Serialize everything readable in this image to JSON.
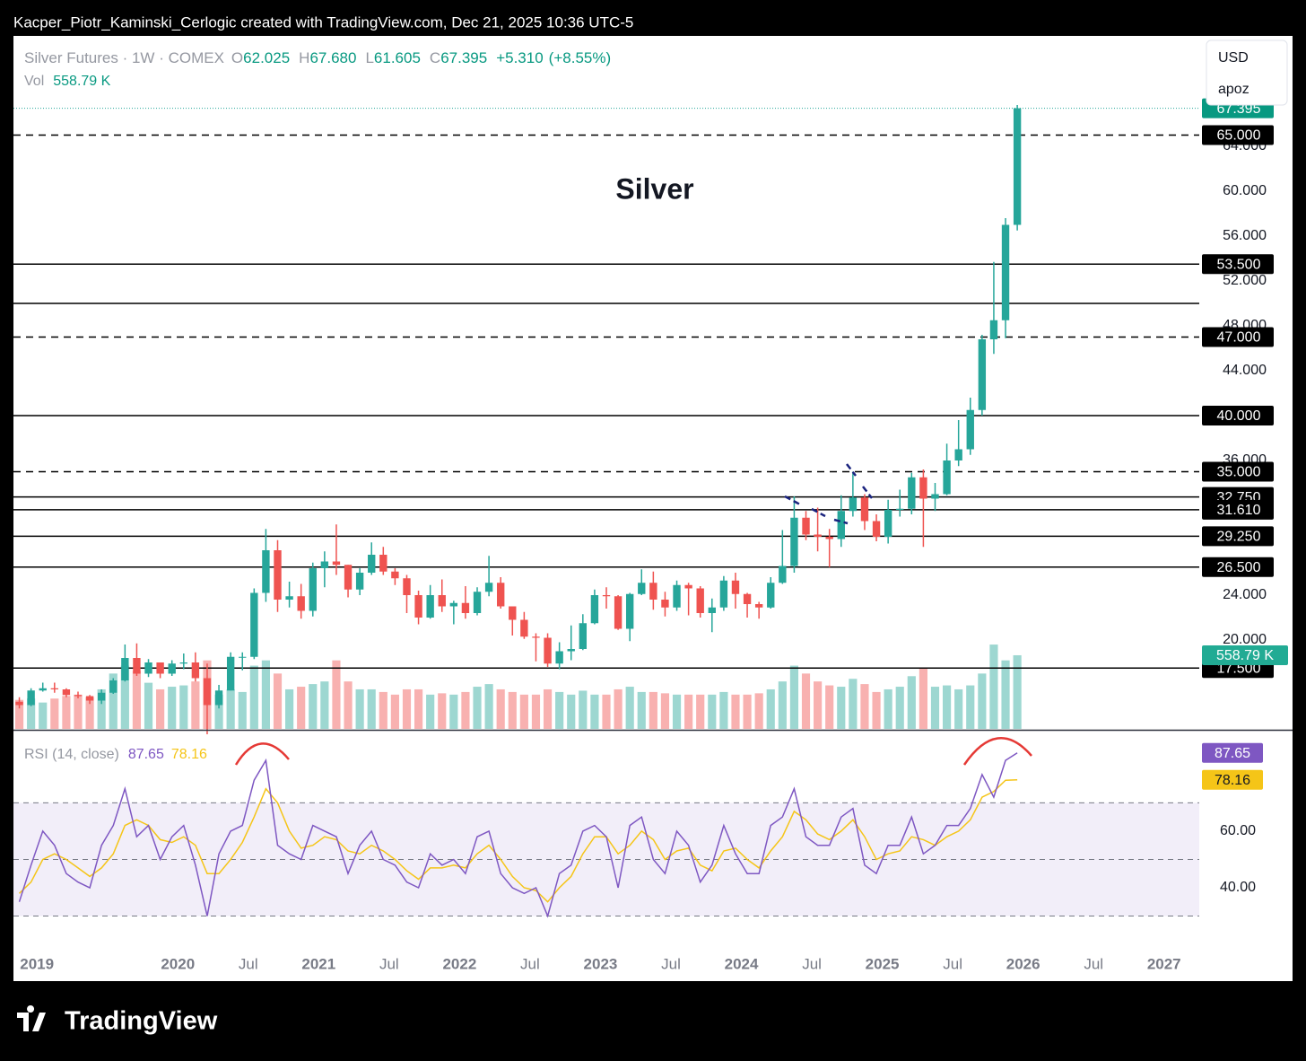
{
  "header": "Kacper_Piotr_Kaminski_Cerlogic created with TradingView.com, Dec 21, 2025 10:36 UTC-5",
  "footer_logo": "TradingView",
  "chart_data": {
    "type": "candlestick",
    "annotation": "Silver",
    "currency": "USD",
    "scale_mode": "apoz",
    "legend": {
      "symbol": "Silver Futures · 1W · COMEX",
      "fields": [
        {
          "letter": "O",
          "value": 62.025
        },
        {
          "letter": "H",
          "value": {
            "value": 67.68,
            "label": "67.680"
          }
        },
        {
          "letter": "L",
          "value": 61.605
        },
        {
          "letter": "C",
          "value": 67.395
        }
      ],
      "change": {
        "value": 5.31,
        "label": "+5.310"
      },
      "change_pct": {
        "value": 8.55,
        "label": "(+8.55%)"
      },
      "vol_label": "Vol",
      "vol": {
        "value": 558.79,
        "label": "558.79 K"
      }
    },
    "up_color": "#26a69a",
    "down_color": "#ef5350",
    "xlim": [
      "2018-11",
      "2027-04"
    ],
    "xticks": [
      {
        "value": "2019-01",
        "label": "2019"
      },
      {
        "value": "2020-01",
        "label": "2020"
      },
      {
        "value": "2020-07",
        "label": "Jul"
      },
      {
        "value": "2021-01",
        "label": "2021"
      },
      {
        "value": "2021-07",
        "label": "Jul"
      },
      {
        "value": "2022-01",
        "label": "2022"
      },
      {
        "value": "2022-07",
        "label": "Jul"
      },
      {
        "value": "2023-01",
        "label": "2023"
      },
      {
        "value": "2023-07",
        "label": "Jul"
      },
      {
        "value": "2024-01",
        "label": "2024"
      },
      {
        "value": "2024-07",
        "label": "Jul"
      },
      {
        "value": "2025-01",
        "label": "2025"
      },
      {
        "value": "2025-07",
        "label": "Jul"
      },
      {
        "value": "2026-01",
        "label": "2026"
      },
      {
        "value": "2026-07",
        "label": "Jul"
      },
      {
        "value": "2027-01",
        "label": "2027"
      }
    ],
    "ylim": [
      12.08,
      73.84
    ],
    "yticks": [
      {
        "value": 64,
        "label": "64.000"
      },
      {
        "value": 60,
        "label": "60.000"
      },
      {
        "value": 56,
        "label": "56.000"
      },
      {
        "value": 52,
        "label": "52.000"
      },
      {
        "value": 48,
        "label": "48.000"
      },
      {
        "value": 44,
        "label": "44.000"
      },
      {
        "value": 36,
        "label": "36.000"
      },
      {
        "value": 24,
        "label": "24.000"
      },
      {
        "value": 20,
        "label": "20.000"
      }
    ],
    "vlim": [
      0,
      5260
    ],
    "levels": [
      {
        "value": 65,
        "label": "65.000",
        "style": "dashed"
      },
      {
        "value": 53.5,
        "label": "53.500",
        "style": "solid"
      },
      {
        "value": 50,
        "label": null,
        "style": "solid"
      },
      {
        "value": 47,
        "label": "47.000",
        "style": "dashed"
      },
      {
        "value": 40,
        "label": "40.000",
        "style": "solid"
      },
      {
        "value": 35,
        "label": "35.000",
        "style": "dashed"
      },
      {
        "value": 32.75,
        "label": "32.750",
        "style": "solid"
      },
      {
        "value": 31.61,
        "label": "31.610",
        "style": "solid"
      },
      {
        "value": 29.25,
        "label": "29.250",
        "style": "solid"
      },
      {
        "value": 26.5,
        "label": "26.500",
        "style": "solid"
      },
      {
        "value": 17.5,
        "label": "17.500",
        "style": "solid"
      }
    ],
    "x": [
      "2018-11",
      "2018-12",
      "2019-01",
      "2019-02",
      "2019-03",
      "2019-04",
      "2019-05",
      "2019-06",
      "2019-07",
      "2019-08",
      "2019-09",
      "2019-10",
      "2019-11",
      "2019-12",
      "2020-01",
      "2020-02",
      "2020-03",
      "2020-04",
      "2020-05",
      "2020-06",
      "2020-07",
      "2020-08",
      "2020-09",
      "2020-10",
      "2020-11",
      "2020-12",
      "2021-01",
      "2021-02",
      "2021-03",
      "2021-04",
      "2021-05",
      "2021-06",
      "2021-07",
      "2021-08",
      "2021-09",
      "2021-10",
      "2021-11",
      "2021-12",
      "2022-01",
      "2022-02",
      "2022-03",
      "2022-04",
      "2022-05",
      "2022-06",
      "2022-07",
      "2022-08",
      "2022-09",
      "2022-10",
      "2022-11",
      "2022-12",
      "2023-01",
      "2023-02",
      "2023-03",
      "2023-04",
      "2023-05",
      "2023-06",
      "2023-07",
      "2023-08",
      "2023-09",
      "2023-10",
      "2023-11",
      "2023-12",
      "2024-01",
      "2024-02",
      "2024-03",
      "2024-04",
      "2024-05",
      "2024-06",
      "2024-07",
      "2024-08",
      "2024-09",
      "2024-10",
      "2024-11",
      "2024-12",
      "2025-01",
      "2025-02",
      "2025-03",
      "2025-04",
      "2025-05",
      "2025-06",
      "2025-07",
      "2025-08",
      "2025-09",
      "2025-10",
      "2025-11",
      "2025-12"
    ],
    "open": [
      14.5,
      14.2,
      15.5,
      15.7,
      15.6,
      15.1,
      15.0,
      14.6,
      15.3,
      16.4,
      18.4,
      17.0,
      18.0,
      17.0,
      17.9,
      18.0,
      16.6,
      14.2,
      15.5,
      18.5,
      18.5,
      24.2,
      28.0,
      23.6,
      23.9,
      22.6,
      26.4,
      27.0,
      26.7,
      24.5,
      26.0,
      27.6,
      26.1,
      25.5,
      24.0,
      22.0,
      24.0,
      23.0,
      23.3,
      22.4,
      24.3,
      25.1,
      23.0,
      21.8,
      20.3,
      20.2,
      17.9,
      19.0,
      19.2,
      21.5,
      24.0,
      23.9,
      21.0,
      24.1,
      25.1,
      23.6,
      22.9,
      24.9,
      24.6,
      22.4,
      22.9,
      25.3,
      24.1,
      23.2,
      22.9,
      25.1,
      26.6,
      30.9,
      29.4,
      29.2,
      29.0,
      31.5,
      32.7,
      30.6,
      29.2,
      31.6,
      31.7,
      34.5,
      32.6,
      33.0,
      36.0,
      37.0,
      40.5,
      46.8,
      48.5,
      57.0
    ],
    "high": [
      14.9,
      15.7,
      16.2,
      16.2,
      15.7,
      15.4,
      15.1,
      15.6,
      16.6,
      19.6,
      19.7,
      18.3,
      18.0,
      18.2,
      18.8,
      18.9,
      17.9,
      16.0,
      18.9,
      18.9,
      24.6,
      29.9,
      28.9,
      25.2,
      25.0,
      26.9,
      27.9,
      30.3,
      26.7,
      26.4,
      28.7,
      28.3,
      26.4,
      25.8,
      24.4,
      24.9,
      25.4,
      23.5,
      24.8,
      24.7,
      27.5,
      25.6,
      23.0,
      22.5,
      20.6,
      20.6,
      19.8,
      21.3,
      22.3,
      24.5,
      24.7,
      24.0,
      24.2,
      26.3,
      26.1,
      24.3,
      25.3,
      25.1,
      24.8,
      23.7,
      25.7,
      26.0,
      24.2,
      23.4,
      25.6,
      29.8,
      32.8,
      31.5,
      31.8,
      29.9,
      32.9,
      35.0,
      33.0,
      31.2,
      32.5,
      33.4,
      34.9,
      35.2,
      34.0,
      37.5,
      39.6,
      41.6,
      47.2,
      53.7,
      57.6,
      67.68
    ],
    "low": [
      13.9,
      14.1,
      15.4,
      15.3,
      14.9,
      14.8,
      14.3,
      14.3,
      15.2,
      16.3,
      16.8,
      16.7,
      16.6,
      16.8,
      17.4,
      16.3,
      11.6,
      13.9,
      15.5,
      17.3,
      18.3,
      23.4,
      22.5,
      22.9,
      21.9,
      22.1,
      24.7,
      25.8,
      23.8,
      24.0,
      25.8,
      25.8,
      24.9,
      22.4,
      21.4,
      21.9,
      22.5,
      21.4,
      21.9,
      22.2,
      23.9,
      22.8,
      20.4,
      20.1,
      18.1,
      17.6,
      17.4,
      18.2,
      19.1,
      21.4,
      22.8,
      20.9,
      19.9,
      24.0,
      22.7,
      22.1,
      22.6,
      22.2,
      22.0,
      20.7,
      22.6,
      22.8,
      22.0,
      21.9,
      22.8,
      25.0,
      26.0,
      28.9,
      27.9,
      26.5,
      28.3,
      31.0,
      29.8,
      28.8,
      28.6,
      31.0,
      31.2,
      28.3,
      31.5,
      32.9,
      35.5,
      36.5,
      40.0,
      45.5,
      46.9,
      56.5
    ],
    "close": [
      14.2,
      15.5,
      15.7,
      15.6,
      15.1,
      15.0,
      14.6,
      15.3,
      16.4,
      18.4,
      17.0,
      18.0,
      17.0,
      17.9,
      18.0,
      16.6,
      14.2,
      15.5,
      18.5,
      18.5,
      24.2,
      28.0,
      23.6,
      23.9,
      22.6,
      26.4,
      27.0,
      26.7,
      24.5,
      26.0,
      27.6,
      26.1,
      25.5,
      24.0,
      22.0,
      24.0,
      23.0,
      23.3,
      22.4,
      24.3,
      25.1,
      23.0,
      21.8,
      20.3,
      20.2,
      17.9,
      19.0,
      19.2,
      21.5,
      24.0,
      23.9,
      21.0,
      24.1,
      25.1,
      23.6,
      22.9,
      24.9,
      24.6,
      22.4,
      22.9,
      25.3,
      24.1,
      23.2,
      22.9,
      25.1,
      26.6,
      30.9,
      29.4,
      29.2,
      29.0,
      31.5,
      32.7,
      30.6,
      29.2,
      31.6,
      31.7,
      34.5,
      32.6,
      33.0,
      36.0,
      37.0,
      40.5,
      46.8,
      48.5,
      57.0,
      67.395
    ],
    "volume": [
      220,
      230,
      200,
      230,
      250,
      260,
      240,
      300,
      420,
      480,
      440,
      350,
      300,
      320,
      330,
      360,
      520,
      260,
      300,
      280,
      480,
      520,
      420,
      300,
      320,
      340,
      360,
      520,
      360,
      300,
      300,
      280,
      260,
      300,
      300,
      260,
      270,
      260,
      280,
      320,
      340,
      300,
      280,
      260,
      260,
      300,
      280,
      260,
      290,
      260,
      260,
      300,
      320,
      280,
      280,
      270,
      260,
      260,
      260,
      260,
      280,
      260,
      260,
      270,
      300,
      360,
      480,
      420,
      360,
      330,
      320,
      380,
      340,
      280,
      300,
      320,
      400,
      460,
      320,
      330,
      300,
      330,
      420,
      640,
      520,
      558.79
    ],
    "rsi": {
      "label": "RSI (14, close)",
      "color": "#7e57c2",
      "ma_color": "#f5c518",
      "ylim": [
        18.1,
        95.2
      ],
      "yticks": [
        {
          "value": 60,
          "label": "60.00"
        },
        {
          "value": 40,
          "label": "40.00"
        }
      ],
      "bands": [
        30,
        50,
        70
      ],
      "values": [
        35,
        48,
        60,
        55,
        45,
        42,
        40,
        55,
        62,
        75,
        58,
        62,
        50,
        58,
        62,
        48,
        30,
        52,
        60,
        62,
        78,
        85,
        55,
        52,
        50,
        62,
        60,
        58,
        45,
        55,
        60,
        50,
        48,
        42,
        40,
        52,
        48,
        50,
        45,
        58,
        60,
        45,
        40,
        38,
        40,
        30,
        45,
        48,
        60,
        62,
        58,
        40,
        62,
        65,
        50,
        45,
        60,
        55,
        42,
        48,
        62,
        52,
        45,
        45,
        62,
        65,
        75,
        58,
        55,
        55,
        65,
        68,
        48,
        45,
        55,
        55,
        65,
        52,
        55,
        62,
        62,
        68,
        80,
        72,
        85,
        87.65
      ],
      "ma_values": [
        38,
        42,
        50,
        52,
        50,
        47,
        44,
        47,
        52,
        62,
        64,
        62,
        57,
        56,
        58,
        55,
        45,
        45,
        50,
        56,
        65,
        75,
        70,
        60,
        54,
        55,
        58,
        57,
        53,
        52,
        55,
        53,
        50,
        46,
        43,
        47,
        47,
        48,
        47,
        52,
        55,
        50,
        44,
        40,
        39,
        35,
        40,
        44,
        52,
        58,
        58,
        52,
        55,
        60,
        57,
        50,
        53,
        54,
        48,
        46,
        53,
        54,
        50,
        47,
        53,
        58,
        67,
        64,
        59,
        57,
        60,
        64,
        58,
        50,
        52,
        53,
        58,
        57,
        55,
        58,
        60,
        64,
        72,
        74,
        78,
        78.16
      ]
    }
  }
}
